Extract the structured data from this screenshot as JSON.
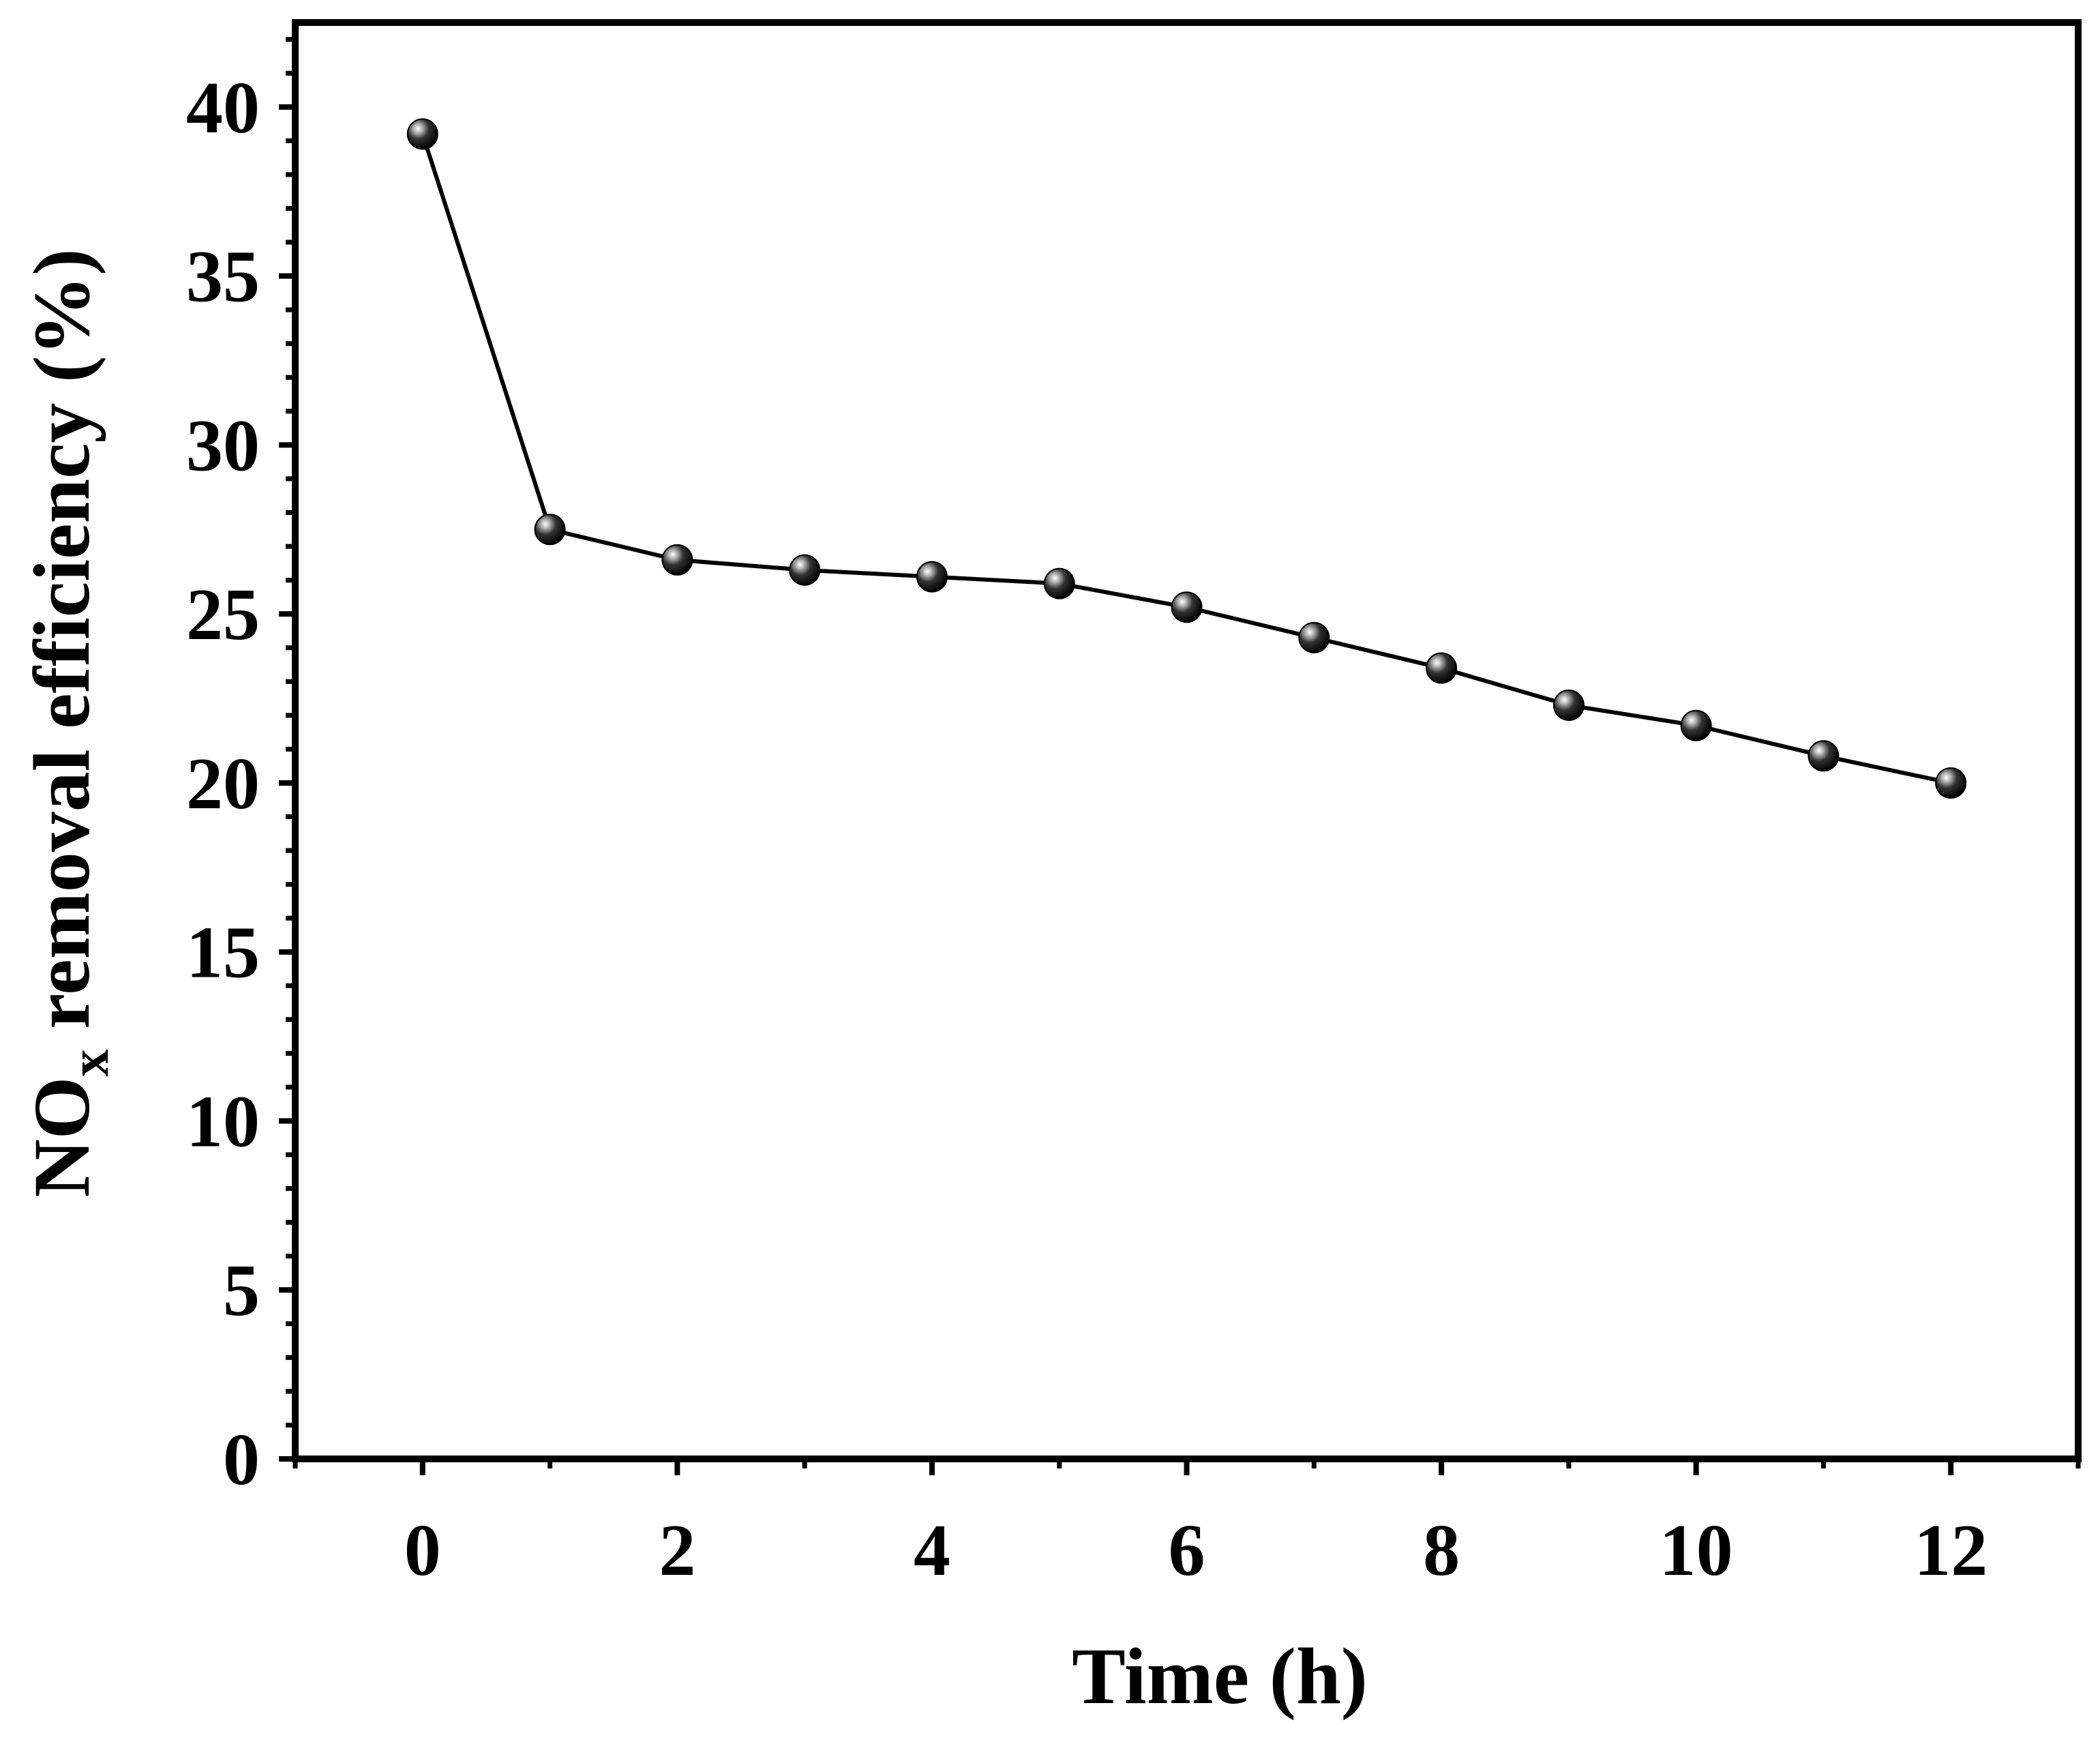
{
  "chart_data": {
    "type": "line",
    "title": "",
    "xlabel": "Time (h)",
    "ylabel_parts": [
      "NO",
      "x",
      " removal efficiency (%)"
    ],
    "xlim": [
      -1,
      13
    ],
    "ylim": [
      0,
      42.5
    ],
    "x_ticks": [
      0,
      2,
      4,
      6,
      8,
      10,
      12
    ],
    "x_tick_labels": [
      "0",
      "2",
      "4",
      "6",
      "8",
      "10",
      "12"
    ],
    "x_minor_ticks": [
      -1,
      1,
      3,
      5,
      7,
      9,
      11,
      13
    ],
    "y_ticks": [
      0,
      5,
      10,
      15,
      20,
      25,
      30,
      35,
      40
    ],
    "y_tick_labels": [
      "0",
      "5",
      "10",
      "15",
      "20",
      "25",
      "30",
      "35",
      "40"
    ],
    "y_minor_ticks": [
      1,
      2,
      3,
      4,
      6,
      7,
      8,
      9,
      11,
      12,
      13,
      14,
      16,
      17,
      18,
      19,
      21,
      22,
      23,
      24,
      26,
      27,
      28,
      29,
      31,
      32,
      33,
      34,
      36,
      37,
      38,
      39,
      41,
      42
    ],
    "series": [
      {
        "name": "NOx removal efficiency",
        "x": [
          0,
          1,
          2,
          3,
          4,
          5,
          6,
          7,
          8,
          9,
          10,
          11,
          12
        ],
        "values": [
          39.2,
          27.5,
          26.6,
          26.3,
          26.1,
          25.9,
          25.2,
          24.3,
          23.4,
          22.3,
          21.7,
          20.8,
          20.0
        ]
      }
    ]
  }
}
